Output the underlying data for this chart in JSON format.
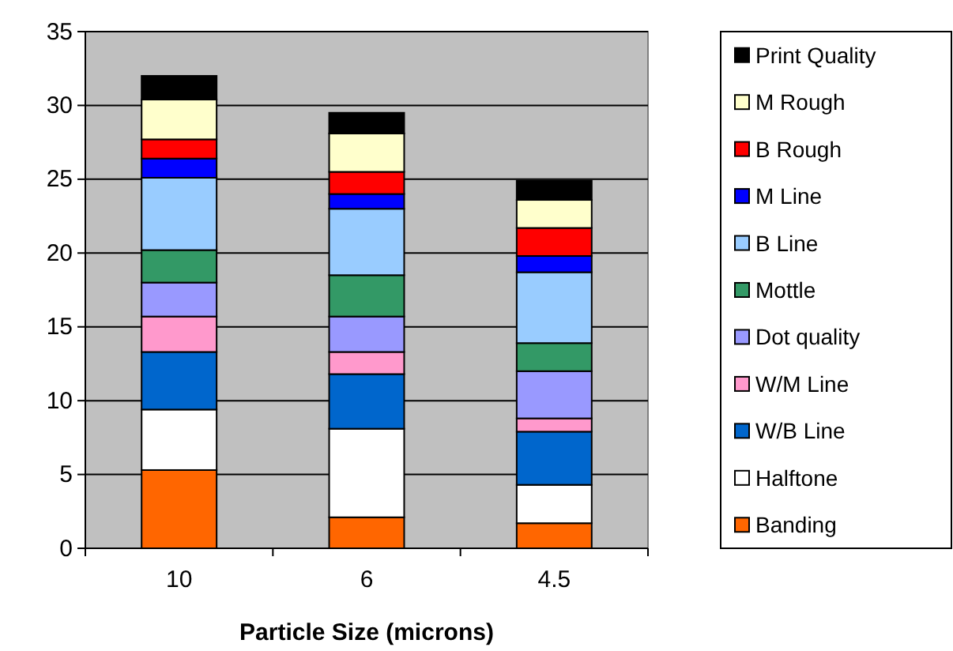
{
  "chart_data": {
    "type": "bar",
    "stacked": true,
    "xlabel": "Particle Size (microns)",
    "categories": [
      "10",
      "6",
      "4.5"
    ],
    "series": [
      {
        "name": "Banding",
        "color": "#ff6600",
        "values": [
          5.3,
          2.1,
          1.7
        ]
      },
      {
        "name": "Halftone",
        "color": "#ffffff",
        "values": [
          4.1,
          6.0,
          2.6
        ]
      },
      {
        "name": "W/B Line",
        "color": "#0066cc",
        "values": [
          3.9,
          3.7,
          3.6
        ]
      },
      {
        "name": "W/M Line",
        "color": "#ff99cc",
        "values": [
          2.4,
          1.5,
          0.9
        ]
      },
      {
        "name": "Dot quality",
        "color": "#9999ff",
        "values": [
          2.3,
          2.4,
          3.2
        ]
      },
      {
        "name": "Mottle",
        "color": "#339966",
        "values": [
          2.2,
          2.8,
          1.9
        ]
      },
      {
        "name": "B Line",
        "color": "#99ccff",
        "values": [
          4.9,
          4.5,
          4.8
        ]
      },
      {
        "name": "M Line",
        "color": "#0000ff",
        "values": [
          1.3,
          1.0,
          1.1
        ]
      },
      {
        "name": "B Rough",
        "color": "#ff0000",
        "values": [
          1.3,
          1.5,
          1.9
        ]
      },
      {
        "name": "M Rough",
        "color": "#ffffcc",
        "values": [
          2.7,
          2.6,
          1.9
        ]
      },
      {
        "name": "Print Quality",
        "color": "#000000",
        "values": [
          1.6,
          1.4,
          1.3
        ]
      }
    ],
    "ylim": [
      0,
      35
    ],
    "yticks": [
      0,
      5,
      10,
      15,
      20,
      25,
      30,
      35
    ],
    "grid": "y",
    "legend": "right"
  }
}
